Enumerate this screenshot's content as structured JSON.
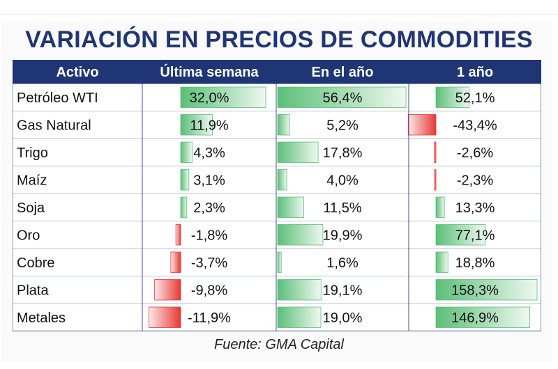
{
  "title": "VARIACIÓN EN PRECIOS DE COMMODITIES",
  "source": "Fuente: GMA Capital",
  "colors": {
    "header_bg": "#1f3574",
    "header_text": "#ffffff",
    "title": "#1f3574",
    "positive": "#5cbf78",
    "negative": "#e53935"
  },
  "chart_data": {
    "type": "table",
    "title": "VARIACIÓN EN PRECIOS DE COMMODITIES",
    "columns": [
      "Activo",
      "Última semana",
      "En el año",
      "1 año"
    ],
    "rows": [
      {
        "asset": "Petróleo WTI",
        "labels": [
          "32,0%",
          "56,4%",
          "52,1%"
        ],
        "values": [
          32.0,
          56.4,
          52.1
        ]
      },
      {
        "asset": "Gas Natural",
        "labels": [
          "11,9%",
          "5,2%",
          "-43,4%"
        ],
        "values": [
          11.9,
          5.2,
          -43.4
        ]
      },
      {
        "asset": "Trigo",
        "labels": [
          "4,3%",
          "17,8%",
          "-2,6%"
        ],
        "values": [
          4.3,
          17.8,
          -2.6
        ]
      },
      {
        "asset": "Maíz",
        "labels": [
          "3,1%",
          "4,0%",
          "-2,3%"
        ],
        "values": [
          3.1,
          4.0,
          -2.3
        ]
      },
      {
        "asset": "Soja",
        "labels": [
          "2,3%",
          "11,5%",
          "13,3%"
        ],
        "values": [
          2.3,
          11.5,
          13.3
        ]
      },
      {
        "asset": "Oro",
        "labels": [
          "-1,8%",
          "19,9%",
          "77,1%"
        ],
        "values": [
          -1.8,
          19.9,
          77.1
        ]
      },
      {
        "asset": "Cobre",
        "labels": [
          "-3,7%",
          "1,6%",
          "18,8%"
        ],
        "values": [
          -3.7,
          1.6,
          18.8
        ]
      },
      {
        "asset": "Plata",
        "labels": [
          "-9,8%",
          "19,1%",
          "158,3%"
        ],
        "values": [
          -9.8,
          19.1,
          158.3
        ]
      },
      {
        "asset": "Metales",
        "labels": [
          "-11,9%",
          "19,0%",
          "146,9%"
        ],
        "values": [
          -11.9,
          19.0,
          146.9
        ]
      }
    ]
  }
}
